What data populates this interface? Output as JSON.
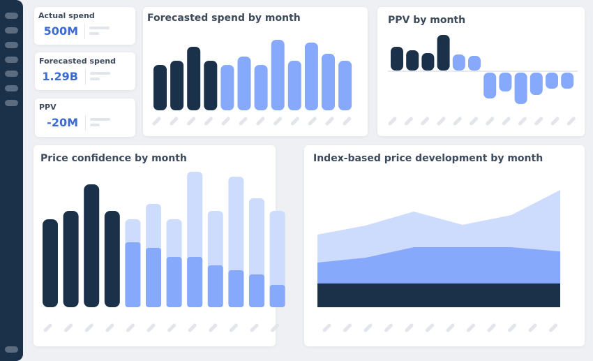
{
  "kpis": [
    {
      "title": "Actual spend",
      "value": "500M"
    },
    {
      "title": "Forecasted spend",
      "value": "1.29B"
    },
    {
      "title": "PPV",
      "value": "-20M"
    }
  ],
  "colors": {
    "sidebar": "#1b3049",
    "actual": "#1b3049",
    "forecast": "#86a9fb",
    "light": "#cddbfd",
    "value_text": "#3b6bd0"
  },
  "chart_data": [
    {
      "type": "bar",
      "title": "Forecasted spend by month",
      "values": [
        65,
        71,
        91,
        71,
        65,
        77,
        65,
        101,
        71,
        97,
        81,
        71
      ],
      "actual_count": 4
    },
    {
      "type": "bar",
      "title": "PPV by month",
      "values": [
        34,
        29,
        25,
        51,
        23,
        21,
        -37,
        -27,
        -45,
        -32,
        -23,
        -23
      ],
      "actual_count": 4
    },
    {
      "type": "bar",
      "title": "Price confidence by month",
      "stacked": true,
      "series": [
        {
          "values": [
            126,
            138,
            176,
            138,
            93,
            85,
            72,
            72,
            60,
            53,
            47,
            32
          ]
        },
        {
          "values": [
            0,
            0,
            0,
            0,
            33,
            63,
            54,
            122,
            78,
            134,
            109,
            106
          ]
        }
      ],
      "actual_count": 4
    },
    {
      "type": "area",
      "title": "Index-based price development by month",
      "stacked": true,
      "series": [
        {
          "values": [
            34,
            34,
            34,
            34,
            34,
            34
          ]
        },
        {
          "values": [
            30,
            37,
            52,
            52,
            52,
            46
          ]
        },
        {
          "values": [
            40,
            46,
            51,
            32,
            46,
            88
          ]
        }
      ]
    }
  ]
}
